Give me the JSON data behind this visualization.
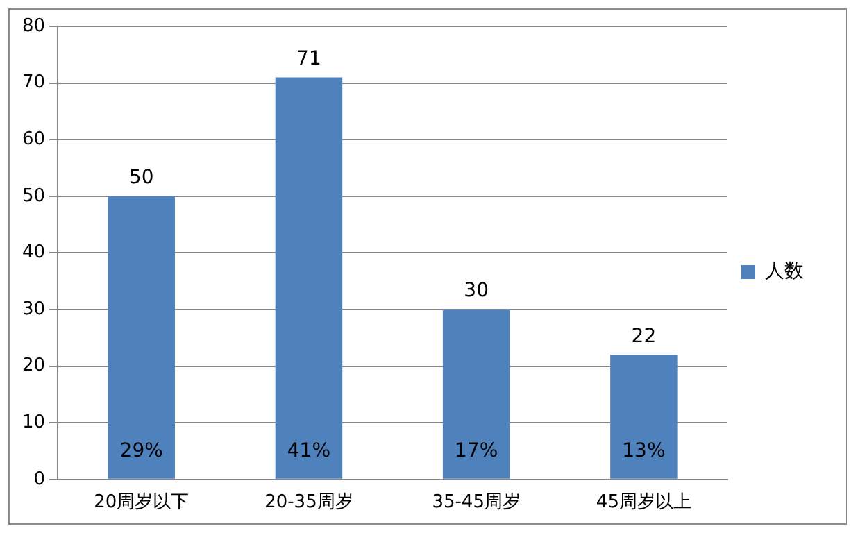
{
  "chart_data": {
    "type": "bar",
    "categories": [
      "20周岁以下",
      "20-35周岁",
      "35-45周岁",
      "45周岁以上"
    ],
    "series": [
      {
        "name": "人数",
        "color": "#4f81bd",
        "values": [
          50,
          71,
          30,
          22
        ]
      }
    ],
    "data_labels": true,
    "annotations": [
      "29%",
      "41%",
      "17%",
      "13%"
    ],
    "ylim": [
      0,
      80
    ],
    "yticks": [
      0,
      10,
      20,
      30,
      40,
      50,
      60,
      70,
      80
    ],
    "grid": "y",
    "legend": "right"
  }
}
